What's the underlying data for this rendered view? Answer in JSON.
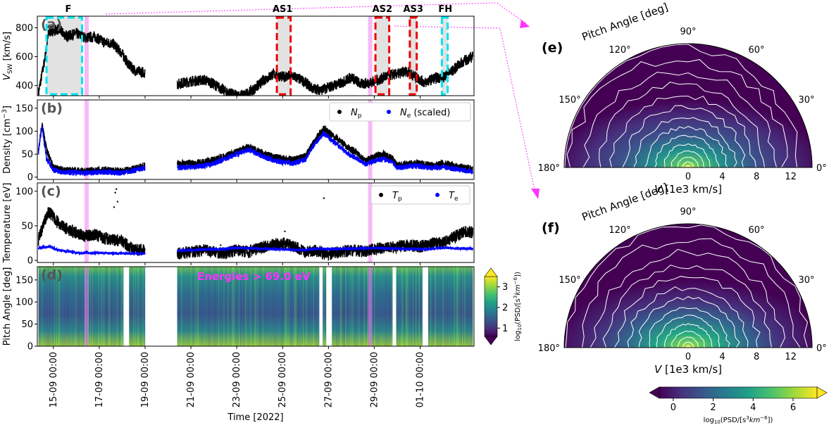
{
  "chart_data": [
    {
      "panel": "(a)",
      "type": "line",
      "ylabel": "V_SW [km/s]",
      "ylabel_main": "V",
      "ylabel_sub": "SW",
      "ylabel_unit": " [km/s]",
      "ylim": [
        330,
        880
      ],
      "yticks": [
        400,
        600,
        800
      ],
      "xaxis": "day of September/October 2022 (day 14.0 = 14-09 00:00)",
      "xlim": [
        14.3,
        33.35
      ],
      "segments": [
        [
          14.35,
          18.05
        ],
        [
          18.05,
          19.0
        ],
        [
          20.4,
          29.8
        ],
        [
          29.8,
          33.3
        ]
      ],
      "series": [
        {
          "name": "V_SW",
          "color": "#000000",
          "x": [
            14.35,
            14.6,
            14.8,
            15.2,
            15.6,
            16.0,
            16.4,
            16.8,
            17.2,
            17.6,
            18.0,
            18.3,
            18.6,
            19.0,
            20.4,
            21.0,
            21.6,
            22.0,
            22.5,
            23.0,
            23.4,
            23.8,
            24.2,
            24.6,
            25.0,
            25.4,
            25.8,
            26.0,
            26.3,
            26.7,
            27.2,
            27.6,
            28.0,
            28.4,
            28.8,
            29.2,
            29.6,
            30.0,
            30.4,
            30.8,
            31.2,
            31.6,
            32.0,
            32.4,
            32.8,
            33.3
          ],
          "y": [
            350,
            560,
            770,
            790,
            740,
            760,
            730,
            740,
            700,
            690,
            620,
            540,
            500,
            490,
            410,
            430,
            440,
            410,
            360,
            330,
            340,
            380,
            440,
            480,
            460,
            470,
            440,
            420,
            380,
            370,
            400,
            420,
            460,
            410,
            420,
            440,
            470,
            480,
            500,
            460,
            420,
            450,
            460,
            500,
            560,
            600
          ]
        }
      ],
      "intervals": [
        {
          "label": "F",
          "x0": 14.7,
          "x1": 16.25,
          "edge": "#00e5ee"
        },
        {
          "label": "AS1",
          "x0": 24.75,
          "x1": 25.35,
          "edge": "#ee0000"
        },
        {
          "label": "AS2",
          "x0": 29.05,
          "x1": 29.65,
          "edge": "#ee0000"
        },
        {
          "label": "AS3",
          "x0": 30.55,
          "x1": 30.85,
          "edge": "#ee0000"
        },
        {
          "label": "FH",
          "x0": 31.95,
          "x1": 32.2,
          "edge": "#00e5ee"
        }
      ],
      "interval_labels": [
        "F",
        "AS1",
        "AS2",
        "AS3",
        "FH"
      ],
      "interval_label_x": [
        15.65,
        25.0,
        29.35,
        30.7,
        32.1
      ],
      "highlight_lines_x": [
        16.45,
        28.82
      ]
    },
    {
      "panel": "(b)",
      "type": "line",
      "ylabel": "Density [cm^-3]",
      "ylabel_main": "Density [cm",
      "ylabel_sup": "−3",
      "ylabel_close": "]",
      "ylim": [
        -5,
        168
      ],
      "yticks": [
        0,
        50,
        100,
        150
      ],
      "legend": [
        "N_p",
        "N_e (scaled)"
      ],
      "legend_main": [
        "N",
        "N"
      ],
      "legend_sub": [
        "p",
        "e"
      ],
      "legend_suffix": [
        "",
        " (scaled)"
      ],
      "legend_loc": "upper right",
      "series": [
        {
          "name": "N_p",
          "color": "#000000",
          "x": [
            14.35,
            14.5,
            14.7,
            15.0,
            15.5,
            16.0,
            16.5,
            17.0,
            17.5,
            18.0,
            18.5,
            19.0,
            20.4,
            21.0,
            21.6,
            22.0,
            22.5,
            23.0,
            23.5,
            24.0,
            24.5,
            25.0,
            25.5,
            26.0,
            26.3,
            26.6,
            26.8,
            27.2,
            27.6,
            27.8,
            28.2,
            28.6,
            29.0,
            29.4,
            29.8,
            30.0,
            30.4,
            30.8,
            31.2,
            31.6,
            32.0,
            32.5,
            33.0,
            33.3
          ],
          "y": [
            60,
            115,
            60,
            20,
            15,
            14,
            13,
            15,
            14,
            13,
            18,
            25,
            28,
            30,
            32,
            38,
            45,
            55,
            65,
            55,
            45,
            40,
            38,
            45,
            70,
            95,
            105,
            90,
            75,
            65,
            55,
            35,
            45,
            50,
            40,
            25,
            28,
            30,
            28,
            25,
            30,
            25,
            20,
            18
          ]
        },
        {
          "name": "N_e (scaled)",
          "color": "#0000ff",
          "x": [
            14.35,
            14.5,
            14.7,
            15.0,
            15.5,
            16.0,
            16.5,
            17.0,
            17.5,
            18.0,
            18.5,
            19.0,
            20.4,
            21.0,
            21.6,
            22.0,
            22.5,
            23.0,
            23.5,
            24.0,
            24.5,
            25.0,
            25.5,
            26.0,
            26.3,
            26.6,
            26.8,
            27.2,
            27.6,
            27.8,
            28.2,
            28.6,
            29.0,
            29.4,
            29.8,
            30.0,
            30.4,
            30.8,
            31.2,
            31.6,
            32.0,
            32.5,
            33.0,
            33.3
          ],
          "y": [
            55,
            110,
            40,
            15,
            10,
            10,
            9,
            11,
            10,
            9,
            14,
            20,
            20,
            22,
            25,
            30,
            40,
            50,
            60,
            48,
            38,
            32,
            30,
            38,
            65,
            85,
            95,
            78,
            62,
            52,
            42,
            28,
            35,
            40,
            32,
            20,
            22,
            24,
            22,
            20,
            22,
            18,
            14,
            12
          ]
        }
      ],
      "highlight_lines_x": [
        16.45,
        28.82
      ]
    },
    {
      "panel": "(c)",
      "type": "line",
      "ylabel": "Temperature [eV]",
      "ylim": [
        -3,
        112
      ],
      "yticks": [
        0,
        50,
        100
      ],
      "legend": [
        "T_p",
        "T_e"
      ],
      "legend_main": [
        "T",
        "T"
      ],
      "legend_sub": [
        "p",
        "e"
      ],
      "legend_suffix": [
        "",
        ""
      ],
      "legend_loc": "upper right",
      "series": [
        {
          "name": "T_p",
          "color": "#000000",
          "x": [
            14.35,
            14.6,
            14.8,
            15.2,
            15.6,
            16.0,
            16.4,
            16.8,
            17.2,
            17.6,
            18.0,
            18.5,
            19.0,
            20.4,
            21.0,
            21.6,
            22.0,
            22.5,
            23.0,
            23.5,
            24.0,
            24.5,
            25.0,
            25.5,
            26.0,
            26.5,
            27.0,
            27.5,
            28.0,
            28.5,
            29.0,
            29.5,
            30.0,
            30.5,
            31.0,
            31.5,
            32.0,
            32.5,
            33.0,
            33.3
          ],
          "y": [
            30,
            55,
            70,
            55,
            45,
            40,
            35,
            38,
            32,
            30,
            28,
            15,
            15,
            10,
            12,
            15,
            12,
            10,
            15,
            12,
            18,
            22,
            25,
            20,
            12,
            14,
            8,
            12,
            15,
            13,
            16,
            18,
            20,
            22,
            20,
            24,
            26,
            34,
            42,
            40
          ]
        },
        {
          "name": "T_e",
          "color": "#0000ff",
          "x": [
            14.35,
            14.8,
            15.2,
            16.0,
            17.0,
            18.0,
            18.5,
            19.0,
            20.4,
            21.0,
            22.0,
            23.0,
            24.0,
            25.0,
            26.0,
            26.5,
            27.0,
            28.0,
            29.0,
            30.0,
            31.0,
            32.0,
            33.0,
            33.3
          ],
          "y": [
            18,
            20,
            15,
            11,
            11,
            10,
            10,
            10,
            14,
            15,
            16,
            18,
            17,
            16,
            15,
            17,
            16,
            17,
            18,
            17,
            16,
            18,
            17,
            17
          ]
        }
      ],
      "scatter_outliers": {
        "x": [
          17.7,
          17.75,
          17.8,
          17.65,
          22.3,
          25.1,
          26.8
        ],
        "y": [
          98,
          103,
          85,
          77,
          22,
          42,
          90
        ]
      },
      "highlight_lines_x": [
        16.45,
        28.82
      ]
    },
    {
      "panel": "(d)",
      "type": "heatmap",
      "ylabel": "Pitch Angle [deg]",
      "xlabel": "Time [2022]",
      "ylim": [
        0,
        180
      ],
      "yticks": [
        0,
        50,
        100,
        150
      ],
      "annotation": "Energies > 69.0 eV",
      "annotation_color": "#ff33ff",
      "xticks": [
        15,
        17,
        19,
        21,
        23,
        25,
        27,
        29,
        31
      ],
      "xtick_labels": [
        "15-09 00:00",
        "17-09 00:00",
        "19-09 00:00",
        "21-09 00:00",
        "23-09 00:00",
        "25-09 00:00",
        "27-09 00:00",
        "29-09 00:00",
        "01-10 00:00"
      ],
      "data_blocks": [
        [
          14.35,
          18.05
        ],
        [
          18.3,
          19.0
        ],
        [
          20.4,
          26.6
        ],
        [
          26.75,
          26.9
        ],
        [
          27.15,
          29.8
        ],
        [
          29.95,
          31.1
        ],
        [
          31.35,
          33.3
        ]
      ],
      "colorbar_label": "log10(PSD/[s^3 km^-6])",
      "colorbar_label_prefix": "log",
      "colorbar_label_sub": "10",
      "colorbar_label_mid": "(PSD/[s",
      "colorbar_label_sup1": "3",
      "colorbar_label_km": "km",
      "colorbar_label_sup2": "−6",
      "colorbar_label_end": "])",
      "colorbar_ticks": [
        1,
        2,
        3
      ],
      "colorbar_range": [
        0.6,
        3.5
      ],
      "cmap": "viridis"
    },
    {
      "panel": "(e)",
      "type": "polar_heatmap",
      "title": "Pitch Angle [deg]",
      "xlabel": "V [1e3 km/s]",
      "xlabel_italic": "V",
      "xlabel_rest": " [1e3 km/s]",
      "angle_ticks": [
        0,
        30,
        60,
        90,
        120,
        150,
        180
      ],
      "angle_tick_labels": [
        "0°",
        "30°",
        "60°",
        "90°",
        "120°",
        "150°",
        "180°"
      ],
      "radial_ticks": [
        0,
        4,
        8,
        12
      ],
      "rmax": 14.5
    },
    {
      "panel": "(f)",
      "type": "polar_heatmap",
      "title": "Pitch Angle [deg]",
      "xlabel": "V [1e3 km/s]",
      "xlabel_italic": "V",
      "xlabel_rest": " [1e3 km/s]",
      "angle_ticks": [
        0,
        30,
        60,
        90,
        120,
        150,
        180
      ],
      "angle_tick_labels": [
        "0°",
        "30°",
        "60°",
        "90°",
        "120°",
        "150°",
        "180°"
      ],
      "radial_ticks": [
        0,
        4,
        8,
        12
      ],
      "rmax": 14.5,
      "colorbar_label": "log10(PSD/[s^3 km^-6])",
      "colorbar_ticks": [
        0,
        2,
        4,
        6
      ],
      "colorbar_range": [
        -0.7,
        7.2
      ]
    }
  ]
}
